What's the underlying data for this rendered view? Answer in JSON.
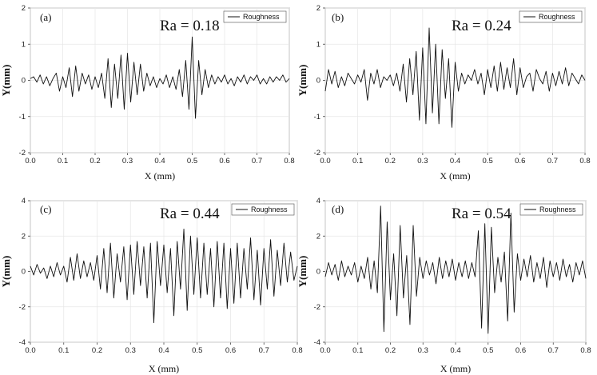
{
  "chart_data": [
    {
      "type": "line",
      "panel_label": "(a)",
      "annotation": "Ra = 0.18",
      "legend": [
        "Roughness"
      ],
      "legend_position": "top-right",
      "xlabel": "X (mm)",
      "ylabel": "Y(mm)",
      "xlim": [
        0,
        0.8
      ],
      "ylim": [
        -2,
        2
      ],
      "x_ticks": [
        "0.0",
        "0.1",
        "0.2",
        "0.3",
        "0.4",
        "0.5",
        "0.6",
        "0.7",
        "0.8"
      ],
      "y_ticks": [
        "2",
        "1",
        "0",
        "-1",
        "-2"
      ],
      "grid": true,
      "series": [
        {
          "name": "Roughness",
          "x": [
            0,
            0.01,
            0.02,
            0.03,
            0.04,
            0.05,
            0.06,
            0.07,
            0.08,
            0.09,
            0.1,
            0.11,
            0.12,
            0.13,
            0.14,
            0.15,
            0.16,
            0.17,
            0.18,
            0.19,
            0.2,
            0.21,
            0.22,
            0.23,
            0.24,
            0.25,
            0.26,
            0.27,
            0.28,
            0.29,
            0.3,
            0.31,
            0.32,
            0.33,
            0.34,
            0.35,
            0.36,
            0.37,
            0.38,
            0.39,
            0.4,
            0.41,
            0.42,
            0.43,
            0.44,
            0.45,
            0.46,
            0.47,
            0.48,
            0.49,
            0.5,
            0.51,
            0.52,
            0.53,
            0.54,
            0.55,
            0.56,
            0.57,
            0.58,
            0.59,
            0.6,
            0.61,
            0.62,
            0.63,
            0.64,
            0.65,
            0.66,
            0.67,
            0.68,
            0.69,
            0.7,
            0.71,
            0.72,
            0.73,
            0.74,
            0.75,
            0.76,
            0.77,
            0.78,
            0.79,
            0.8
          ],
          "y": [
            0.05,
            0.1,
            -0.05,
            0.15,
            -0.1,
            0.1,
            -0.15,
            0.05,
            0.2,
            -0.3,
            0.1,
            -0.2,
            0.35,
            -0.45,
            0.4,
            -0.3,
            0.2,
            -0.1,
            0.15,
            -0.25,
            0.1,
            -0.2,
            0.2,
            -0.5,
            0.6,
            -0.75,
            0.45,
            -0.5,
            0.7,
            -0.8,
            0.75,
            -0.6,
            0.5,
            -0.4,
            0.45,
            -0.3,
            0.2,
            -0.15,
            0.1,
            -0.2,
            0.05,
            -0.1,
            0.15,
            -0.2,
            0.1,
            -0.25,
            0.3,
            -0.45,
            0.55,
            -0.8,
            1.2,
            -1.05,
            0.55,
            -0.4,
            0.3,
            -0.2,
            0.15,
            -0.1,
            0.1,
            -0.05,
            0.15,
            -0.1,
            0.05,
            -0.15,
            0.1,
            -0.05,
            0.15,
            -0.1,
            0.1,
            0.0,
            0.15,
            -0.1,
            0.05,
            -0.1,
            0.1,
            -0.05,
            0.1,
            0.0,
            0.15,
            -0.05,
            0.05
          ]
        }
      ]
    },
    {
      "type": "line",
      "panel_label": "(b)",
      "annotation": "Ra = 0.24",
      "legend": [
        "Roughness"
      ],
      "legend_position": "top-right",
      "xlabel": "X (mm)",
      "ylabel": "Y(mm)",
      "xlim": [
        0,
        0.8
      ],
      "ylim": [
        -2,
        2
      ],
      "x_ticks": [
        "0.0",
        "0.1",
        "0.2",
        "0.3",
        "0.4",
        "0.5",
        "0.6",
        "0.7",
        "0.8"
      ],
      "y_ticks": [
        "2",
        "1",
        "0",
        "-1",
        "-2"
      ],
      "grid": true,
      "series": [
        {
          "name": "Roughness",
          "x": [
            0,
            0.01,
            0.02,
            0.03,
            0.04,
            0.05,
            0.06,
            0.07,
            0.08,
            0.09,
            0.1,
            0.11,
            0.12,
            0.13,
            0.14,
            0.15,
            0.16,
            0.17,
            0.18,
            0.19,
            0.2,
            0.21,
            0.22,
            0.23,
            0.24,
            0.25,
            0.26,
            0.27,
            0.28,
            0.29,
            0.3,
            0.31,
            0.32,
            0.33,
            0.34,
            0.35,
            0.36,
            0.37,
            0.38,
            0.39,
            0.4,
            0.41,
            0.42,
            0.43,
            0.44,
            0.45,
            0.46,
            0.47,
            0.48,
            0.49,
            0.5,
            0.51,
            0.52,
            0.53,
            0.54,
            0.55,
            0.56,
            0.57,
            0.58,
            0.59,
            0.6,
            0.61,
            0.62,
            0.63,
            0.64,
            0.65,
            0.66,
            0.67,
            0.68,
            0.69,
            0.7,
            0.71,
            0.72,
            0.73,
            0.74,
            0.75,
            0.76,
            0.77,
            0.78,
            0.79,
            0.8
          ],
          "y": [
            -0.3,
            0.3,
            -0.1,
            0.25,
            -0.2,
            0.1,
            -0.15,
            0.2,
            0.05,
            -0.1,
            0.15,
            -0.05,
            0.3,
            -0.55,
            0.2,
            -0.1,
            0.3,
            -0.2,
            0.1,
            0.0,
            0.15,
            -0.15,
            0.2,
            -0.3,
            0.45,
            -0.6,
            0.6,
            -0.4,
            0.8,
            -1.1,
            0.9,
            -1.2,
            1.45,
            -0.9,
            1.0,
            -1.2,
            0.85,
            -0.5,
            0.6,
            -1.3,
            0.5,
            -0.3,
            0.2,
            -0.1,
            0.15,
            0.0,
            0.3,
            -0.1,
            0.2,
            -0.4,
            0.3,
            -0.2,
            0.4,
            -0.3,
            0.5,
            -0.25,
            0.35,
            -0.2,
            0.6,
            -0.4,
            0.35,
            -0.2,
            0.1,
            0.2,
            -0.3,
            0.3,
            0.05,
            -0.1,
            0.25,
            -0.3,
            0.2,
            -0.15,
            0.25,
            -0.1,
            0.35,
            -0.15,
            0.2,
            0.05,
            -0.1,
            0.15,
            0.0
          ]
        }
      ]
    },
    {
      "type": "line",
      "panel_label": "(c)",
      "annotation": "Ra = 0.44",
      "legend": [
        "Roughness"
      ],
      "legend_position": "top-right",
      "xlabel": "X (mm)",
      "ylabel": "Y(mm)",
      "xlim": [
        0,
        0.8
      ],
      "ylim": [
        -4,
        4
      ],
      "x_ticks": [
        "0.0",
        "0.1",
        "0.2",
        "0.3",
        "0.4",
        "0.5",
        "0.6",
        "0.7",
        "0.8"
      ],
      "y_ticks": [
        "4",
        "2",
        "0",
        "-2",
        "-4"
      ],
      "grid": true,
      "series": [
        {
          "name": "Roughness",
          "x": [
            0,
            0.01,
            0.02,
            0.03,
            0.04,
            0.05,
            0.06,
            0.07,
            0.08,
            0.09,
            0.1,
            0.11,
            0.12,
            0.13,
            0.14,
            0.15,
            0.16,
            0.17,
            0.18,
            0.19,
            0.2,
            0.21,
            0.22,
            0.23,
            0.24,
            0.25,
            0.26,
            0.27,
            0.28,
            0.29,
            0.3,
            0.31,
            0.32,
            0.33,
            0.34,
            0.35,
            0.36,
            0.37,
            0.38,
            0.39,
            0.4,
            0.41,
            0.42,
            0.43,
            0.44,
            0.45,
            0.46,
            0.47,
            0.48,
            0.49,
            0.5,
            0.51,
            0.52,
            0.53,
            0.54,
            0.55,
            0.56,
            0.57,
            0.58,
            0.59,
            0.6,
            0.61,
            0.62,
            0.63,
            0.64,
            0.65,
            0.66,
            0.67,
            0.68,
            0.69,
            0.7,
            0.71,
            0.72,
            0.73,
            0.74,
            0.75,
            0.76,
            0.77,
            0.78,
            0.79,
            0.8
          ],
          "y": [
            0.3,
            -0.2,
            0.4,
            -0.1,
            0.2,
            -0.4,
            0.3,
            -0.3,
            0.5,
            -0.2,
            0.3,
            -0.6,
            0.8,
            -0.5,
            1.0,
            -0.4,
            0.6,
            -0.3,
            0.5,
            -0.5,
            0.9,
            -1.0,
            1.3,
            -1.2,
            1.6,
            -1.5,
            1.0,
            -0.6,
            1.4,
            -1.6,
            1.5,
            -1.3,
            1.7,
            -0.8,
            1.4,
            -1.5,
            1.6,
            -2.9,
            1.7,
            -0.8,
            1.5,
            -1.2,
            1.3,
            -2.5,
            1.7,
            -1.0,
            2.4,
            -2.2,
            2.0,
            -1.3,
            1.9,
            -1.5,
            1.6,
            -1.3,
            1.3,
            -2.0,
            1.7,
            -1.5,
            1.6,
            -2.1,
            1.3,
            -1.8,
            1.6,
            -1.5,
            1.3,
            -1.0,
            1.9,
            -1.6,
            1.2,
            -1.9,
            1.3,
            -1.0,
            1.8,
            -1.4,
            1.2,
            -0.8,
            1.6,
            -0.6,
            1.1,
            -0.5,
            0.3
          ]
        }
      ]
    },
    {
      "type": "line",
      "panel_label": "(d)",
      "annotation": "Ra = 0.54",
      "legend": [
        "Roughness"
      ],
      "legend_position": "top-right",
      "xlabel": "X (mm)",
      "ylabel": "Y(mm)",
      "xlim": [
        0,
        0.8
      ],
      "ylim": [
        -4,
        4
      ],
      "x_ticks": [
        "0.0",
        "0.1",
        "0.2",
        "0.3",
        "0.4",
        "0.5",
        "0.6",
        "0.7",
        "0.8"
      ],
      "y_ticks": [
        "4",
        "2",
        "0",
        "-2",
        "-4"
      ],
      "grid": true,
      "series": [
        {
          "name": "Roughness",
          "x": [
            0,
            0.01,
            0.02,
            0.03,
            0.04,
            0.05,
            0.06,
            0.07,
            0.08,
            0.09,
            0.1,
            0.11,
            0.12,
            0.13,
            0.14,
            0.15,
            0.16,
            0.17,
            0.18,
            0.19,
            0.2,
            0.21,
            0.22,
            0.23,
            0.24,
            0.25,
            0.26,
            0.27,
            0.28,
            0.29,
            0.3,
            0.31,
            0.32,
            0.33,
            0.34,
            0.35,
            0.36,
            0.37,
            0.38,
            0.39,
            0.4,
            0.41,
            0.42,
            0.43,
            0.44,
            0.45,
            0.46,
            0.47,
            0.48,
            0.49,
            0.5,
            0.51,
            0.52,
            0.53,
            0.54,
            0.55,
            0.56,
            0.57,
            0.58,
            0.59,
            0.6,
            0.61,
            0.62,
            0.63,
            0.64,
            0.65,
            0.66,
            0.67,
            0.68,
            0.69,
            0.7,
            0.71,
            0.72,
            0.73,
            0.74,
            0.75,
            0.76,
            0.77,
            0.78,
            0.79,
            0.8
          ],
          "y": [
            -0.3,
            0.5,
            -0.2,
            0.4,
            -0.5,
            0.6,
            -0.3,
            0.3,
            -0.2,
            0.5,
            -0.6,
            0.3,
            -0.4,
            0.8,
            -1.0,
            0.6,
            -1.2,
            3.7,
            -3.4,
            2.8,
            -1.6,
            1.0,
            -2.5,
            2.6,
            -1.5,
            0.9,
            -3.0,
            2.6,
            -1.4,
            0.8,
            -0.4,
            0.6,
            -0.2,
            0.5,
            -0.7,
            0.8,
            -0.4,
            0.6,
            -0.3,
            0.7,
            -0.5,
            0.5,
            -0.3,
            0.6,
            -0.4,
            0.5,
            -0.3,
            2.3,
            -3.2,
            2.7,
            -3.5,
            2.5,
            -1.2,
            0.8,
            -0.6,
            1.1,
            -2.8,
            3.3,
            -2.3,
            1.0,
            -0.5,
            0.7,
            -0.3,
            0.9,
            -0.6,
            0.5,
            -0.4,
            0.8,
            -0.9,
            0.6,
            -0.3,
            0.5,
            -0.5,
            0.7,
            -0.3,
            0.4,
            -0.6,
            0.5,
            -0.2,
            0.6,
            -0.4
          ]
        }
      ]
    }
  ]
}
